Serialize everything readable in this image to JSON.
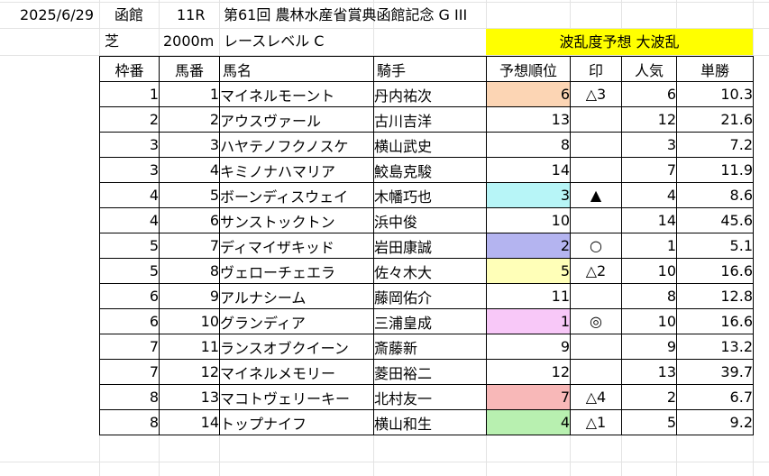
{
  "header": {
    "date": "2025/6/29",
    "venue": "函館",
    "race_no": "11R",
    "race_name": "第61回 農林水産省賞典函館記念 G III",
    "surface": "芝",
    "distance": "2000m",
    "race_level": "レースレベル C",
    "upset_banner": "波乱度予想 大波乱",
    "banner_color": "#ffff00"
  },
  "table": {
    "columns": [
      "枠番",
      "馬番",
      "馬名",
      "騎手",
      "予想順位",
      "印",
      "人気",
      "単勝"
    ],
    "rows": [
      {
        "waku": "1",
        "uma": "1",
        "name": "マイネルモーント",
        "jockey": "丹内祐次",
        "rank": "6",
        "rank_color": "#fcd5b4",
        "mark": "△3",
        "pop": "6",
        "odds": "10.3"
      },
      {
        "waku": "2",
        "uma": "2",
        "name": "アウスヴァール",
        "jockey": "古川吉洋",
        "rank": "13",
        "rank_color": "",
        "mark": "",
        "pop": "12",
        "odds": "21.6"
      },
      {
        "waku": "3",
        "uma": "3",
        "name": "ハヤテノフクノスケ",
        "jockey": "横山武史",
        "rank": "8",
        "rank_color": "",
        "mark": "",
        "pop": "3",
        "odds": "7.2"
      },
      {
        "waku": "3",
        "uma": "4",
        "name": "キミノナハマリア",
        "jockey": "鮫島克駿",
        "rank": "14",
        "rank_color": "",
        "mark": "",
        "pop": "7",
        "odds": "11.9"
      },
      {
        "waku": "4",
        "uma": "5",
        "name": "ボーンディスウェイ",
        "jockey": "木幡巧也",
        "rank": "3",
        "rank_color": "#b7f5f7",
        "mark": "▲",
        "pop": "4",
        "odds": "8.6"
      },
      {
        "waku": "4",
        "uma": "6",
        "name": "サンストックトン",
        "jockey": "浜中俊",
        "rank": "10",
        "rank_color": "",
        "mark": "",
        "pop": "14",
        "odds": "45.6"
      },
      {
        "waku": "5",
        "uma": "7",
        "name": "ディマイザキッド",
        "jockey": "岩田康誠",
        "rank": "2",
        "rank_color": "#b4b4f0",
        "mark": "○",
        "pop": "1",
        "odds": "5.1"
      },
      {
        "waku": "5",
        "uma": "8",
        "name": "ヴェローチェエラ",
        "jockey": "佐々木大",
        "rank": "5",
        "rank_color": "#ffffb8",
        "mark": "△2",
        "pop": "10",
        "odds": "16.6"
      },
      {
        "waku": "6",
        "uma": "9",
        "name": "アルナシーム",
        "jockey": "藤岡佑介",
        "rank": "11",
        "rank_color": "",
        "mark": "",
        "pop": "8",
        "odds": "12.8"
      },
      {
        "waku": "6",
        "uma": "10",
        "name": "グランディア",
        "jockey": "三浦皇成",
        "rank": "1",
        "rank_color": "#f8c8f8",
        "mark": "◎",
        "pop": "10",
        "odds": "16.6"
      },
      {
        "waku": "7",
        "uma": "11",
        "name": "ランスオブクイーン",
        "jockey": "斎藤新",
        "rank": "9",
        "rank_color": "",
        "mark": "",
        "pop": "9",
        "odds": "13.2"
      },
      {
        "waku": "7",
        "uma": "12",
        "name": "マイネルメモリー",
        "jockey": "菱田裕二",
        "rank": "12",
        "rank_color": "",
        "mark": "",
        "pop": "13",
        "odds": "39.7"
      },
      {
        "waku": "8",
        "uma": "13",
        "name": "マコトヴェリーキー",
        "jockey": "北村友一",
        "rank": "7",
        "rank_color": "#f8b8b8",
        "mark": "△4",
        "pop": "2",
        "odds": "6.7"
      },
      {
        "waku": "8",
        "uma": "14",
        "name": "トップナイフ",
        "jockey": "横山和生",
        "rank": "4",
        "rank_color": "#b8f0b0",
        "mark": "△1",
        "pop": "5",
        "odds": "9.2"
      }
    ]
  }
}
